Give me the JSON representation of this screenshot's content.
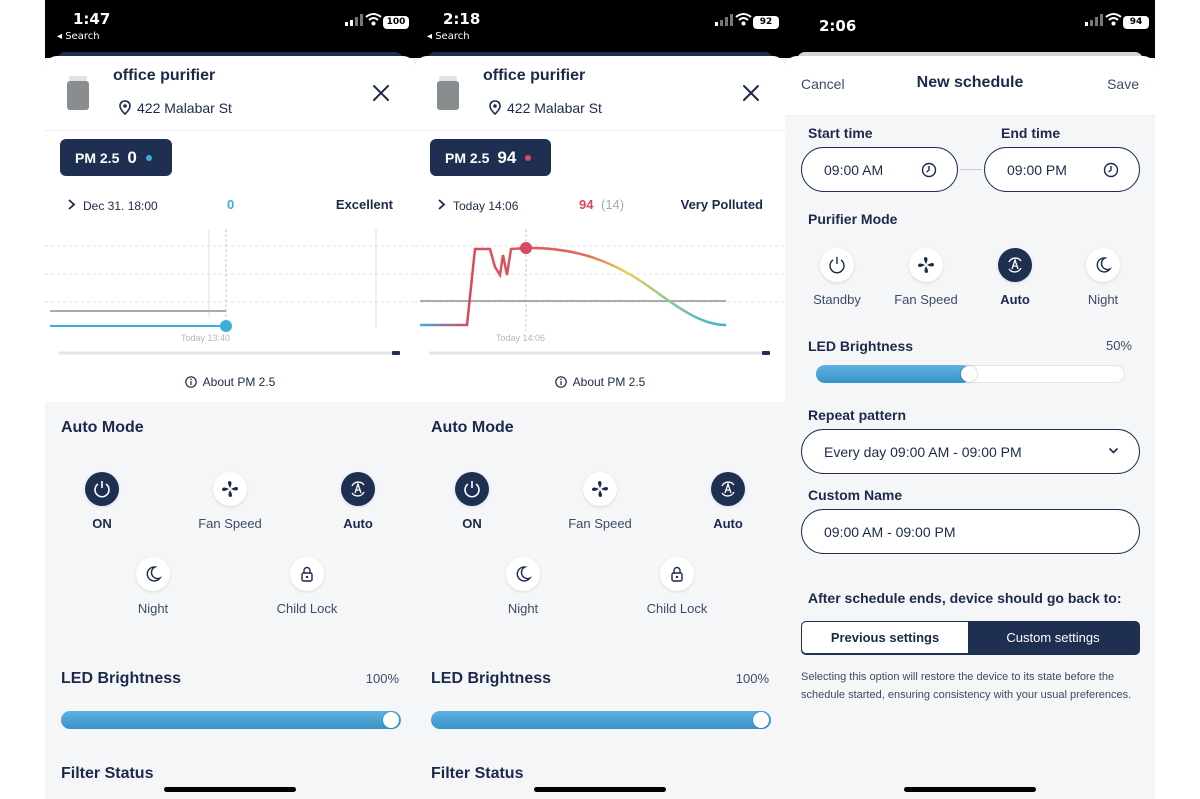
{
  "device": {
    "name": "office purifier",
    "address": "422 Malabar St",
    "pm_label": "PM 2.5"
  },
  "colors": {
    "navy": "#1e2f52",
    "accent": "#3a93c8",
    "good": "#3dafd6",
    "bad": "#d9485f"
  },
  "panels": [
    {
      "status": {
        "time": "1:47",
        "back": "◂ Search",
        "battery": "100"
      },
      "pm_value": "0",
      "reading": {
        "time": "Dec 31. 18:00",
        "value": "0",
        "sub": "",
        "status": "Excellent"
      },
      "chart_time_label": "Today 13:40",
      "about": "About PM 2.5",
      "auto_mode": "Auto Mode",
      "modes": {
        "on": "ON",
        "fan": "Fan Speed",
        "auto": "Auto",
        "night": "Night",
        "lock": "Child Lock"
      },
      "led": {
        "title": "LED Brightness",
        "percent": "100%",
        "level": 1.0
      },
      "filter_status": "Filter Status"
    },
    {
      "status": {
        "time": "2:18",
        "back": "◂ Search",
        "battery": "92"
      },
      "pm_value": "94",
      "reading": {
        "time": "Today 14:06",
        "value": "94",
        "sub": "(14)",
        "status": "Very Polluted"
      },
      "chart_time_label": "Today 14:06",
      "about": "About PM 2.5",
      "auto_mode": "Auto Mode",
      "modes": {
        "on": "ON",
        "fan": "Fan Speed",
        "auto": "Auto",
        "night": "Night",
        "lock": "Child Lock"
      },
      "led": {
        "title": "LED Brightness",
        "percent": "100%",
        "level": 1.0
      },
      "filter_status": "Filter Status"
    }
  ],
  "schedule": {
    "status": {
      "time": "2:06",
      "battery": "94"
    },
    "cancel": "Cancel",
    "title": "New schedule",
    "save": "Save",
    "start_label": "Start time",
    "start_value": "09:00 AM",
    "end_label": "End time",
    "end_value": "09:00 PM",
    "mode_label": "Purifier Mode",
    "modes": [
      "Standby",
      "Fan Speed",
      "Auto",
      "Night"
    ],
    "led_label": "LED Brightness",
    "led_percent": "50%",
    "led_level": 0.5,
    "repeat_label": "Repeat pattern",
    "repeat_value": "Every day 09:00 AM - 09:00 PM",
    "name_label": "Custom Name",
    "name_value": "09:00 AM - 09:00 PM",
    "after_label": "After schedule ends, device should go back to:",
    "opt_previous": "Previous settings",
    "opt_custom": "Custom settings",
    "note": "Selecting this option will restore the device to its state before the schedule started, ensuring consistency with your usual preferences."
  }
}
